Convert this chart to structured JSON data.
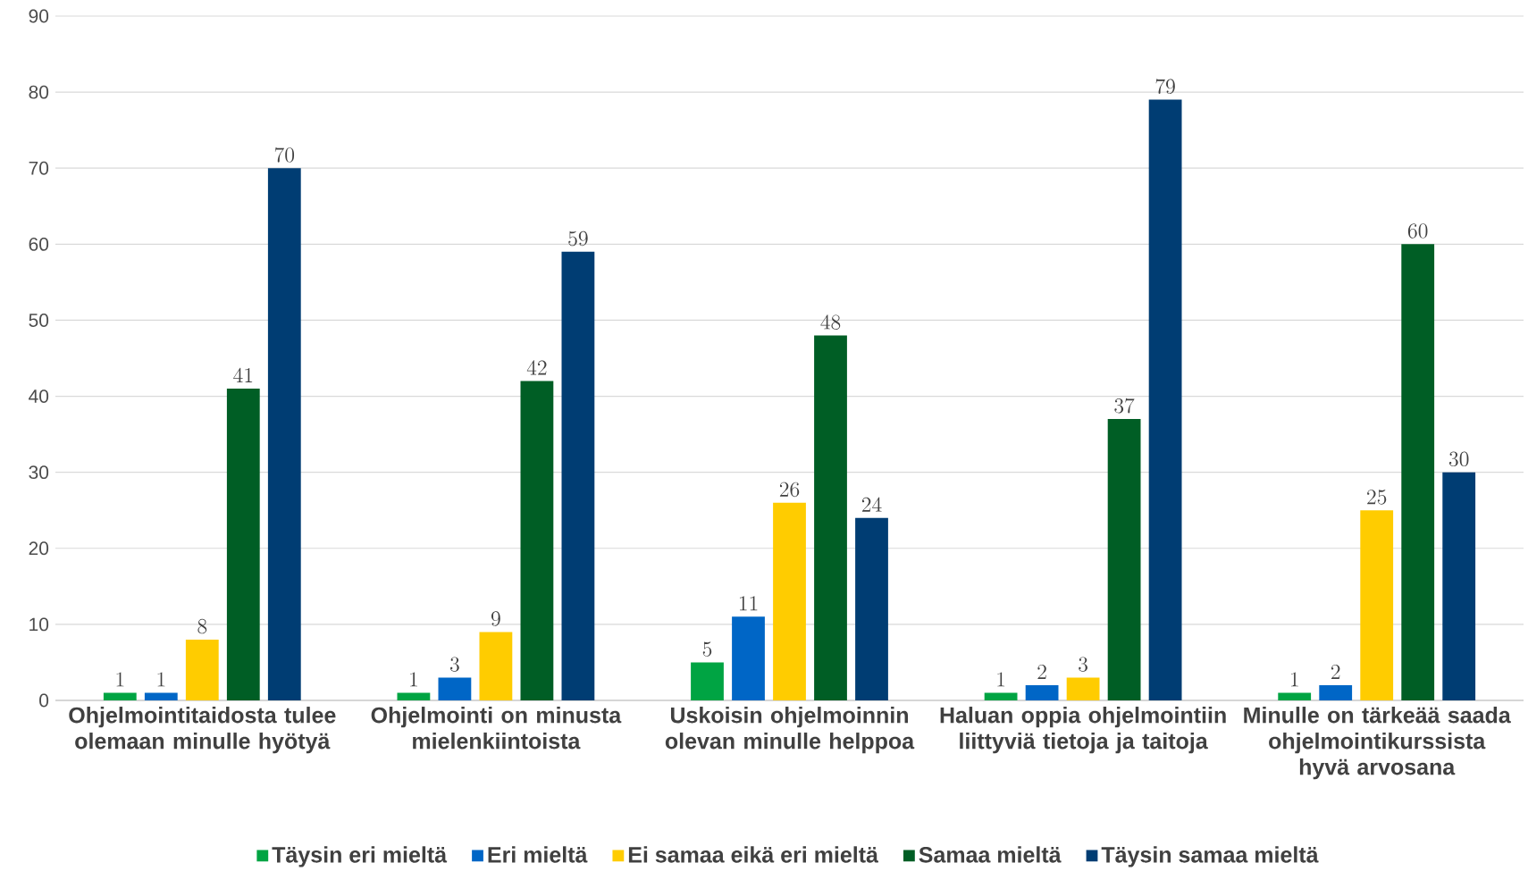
{
  "chart_data": {
    "type": "bar",
    "categories": [
      "Ohjelmointitaidosta tulee olemaan minulle hyötyä",
      "Ohjelmointi on minusta mielenkiintoista",
      "Uskoisin ohjelmoinnin olevan minulle helppoa",
      "Haluan oppia ohjelmointiin liittyviä tietoja ja taitoja",
      "Minulle on tärkeää saada ohjelmointikurssista hyvä arvosana"
    ],
    "series": [
      {
        "name": "Täysin eri mieltä",
        "color": "#00a443",
        "values": [
          1,
          1,
          5,
          1,
          1
        ]
      },
      {
        "name": "Eri mieltä",
        "color": "#0066c6",
        "values": [
          1,
          3,
          11,
          2,
          2
        ]
      },
      {
        "name": "Ei samaa eikä eri mieltä",
        "color": "#ffcc00",
        "values": [
          8,
          9,
          26,
          3,
          25
        ]
      },
      {
        "name": "Samaa mieltä",
        "color": "#005e25",
        "values": [
          41,
          42,
          48,
          37,
          60
        ]
      },
      {
        "name": "Täysin samaa mieltä",
        "color": "#003d73",
        "values": [
          70,
          59,
          24,
          79,
          30
        ]
      }
    ],
    "ylim": [
      0,
      90
    ],
    "yticks": [
      0,
      10,
      20,
      30,
      40,
      50,
      60,
      70,
      80,
      90
    ],
    "grid": "y",
    "legend": "bottom",
    "data_labels": true
  }
}
